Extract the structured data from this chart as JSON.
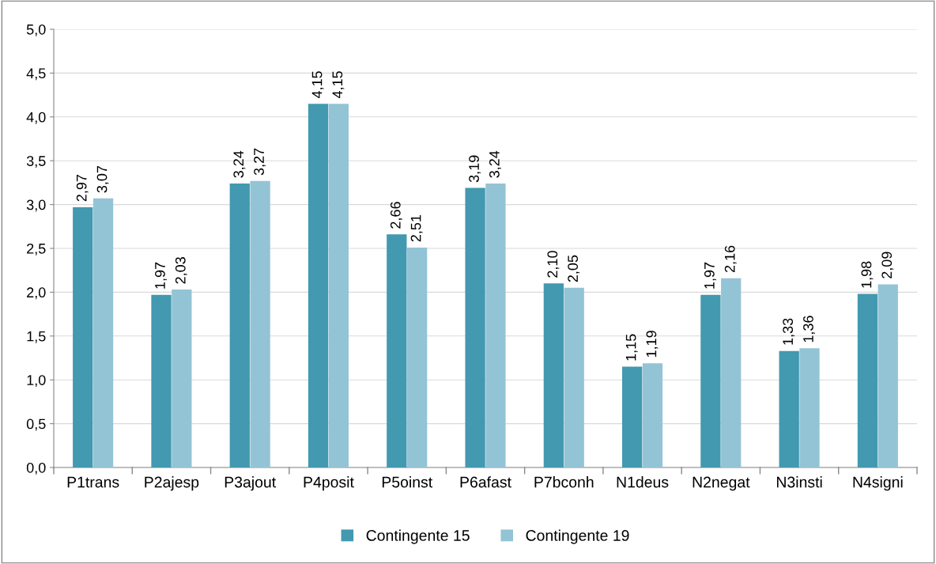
{
  "chart_data": {
    "type": "bar",
    "categories": [
      "P1trans",
      "P2ajesp",
      "P3ajout",
      "P4posit",
      "P5oinst",
      "P6afast",
      "P7bconh",
      "N1deus",
      "N2negat",
      "N3insti",
      "N4signi"
    ],
    "series": [
      {
        "name": "Contingente 15",
        "color": "#4299b0",
        "values": [
          2.97,
          1.97,
          3.24,
          4.15,
          2.66,
          3.19,
          2.1,
          1.15,
          1.97,
          1.33,
          1.98
        ],
        "value_labels": [
          "2,97",
          "1,97",
          "3,24",
          "4,15",
          "2,66",
          "3,19",
          "2,10",
          "1,15",
          "1,97",
          "1,33",
          "1,98"
        ]
      },
      {
        "name": "Contingente 19",
        "color": "#93c4d5",
        "values": [
          3.07,
          2.03,
          3.27,
          4.15,
          2.51,
          3.24,
          2.05,
          1.19,
          2.16,
          1.36,
          2.09
        ],
        "value_labels": [
          "3,07",
          "2,03",
          "3,27",
          "4,15",
          "2,51",
          "3,24",
          "2,05",
          "1,19",
          "2,16",
          "1,36",
          "2,09"
        ]
      }
    ],
    "ylim": [
      0,
      5
    ],
    "yticks": [
      {
        "value": 0,
        "label": "0,0"
      },
      {
        "value": 0.5,
        "label": "0,5"
      },
      {
        "value": 1,
        "label": "1,0"
      },
      {
        "value": 1.5,
        "label": "1,5"
      },
      {
        "value": 2,
        "label": "2,0"
      },
      {
        "value": 2.5,
        "label": "2,5"
      },
      {
        "value": 3,
        "label": "3,0"
      },
      {
        "value": 3.5,
        "label": "3,5"
      },
      {
        "value": 4,
        "label": "4,0"
      },
      {
        "value": 4.5,
        "label": "4,5"
      },
      {
        "value": 5,
        "label": "5,0"
      }
    ],
    "grid": "y",
    "legend": "bottom"
  }
}
